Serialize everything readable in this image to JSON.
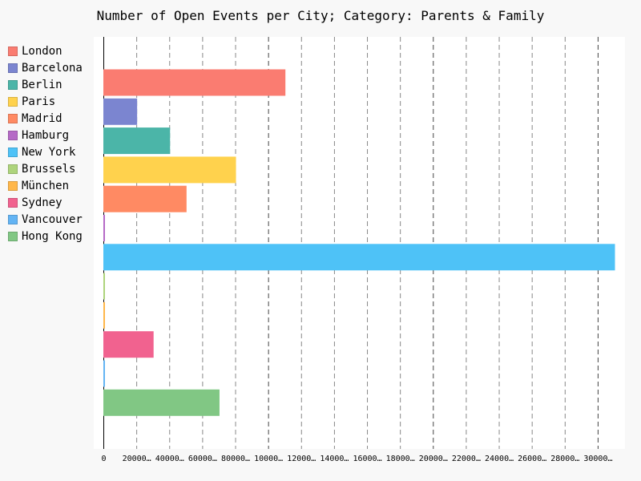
{
  "chart_data": {
    "type": "bar",
    "orientation": "horizontal",
    "title": "Number of Open Events per City; Category: Parents & Family",
    "categories": [
      "London",
      "Barcelona",
      "Berlin",
      "Paris",
      "Madrid",
      "Hamburg",
      "New York",
      "Brussels",
      "München",
      "Sydney",
      "Vancouver",
      "Hong Kong"
    ],
    "values": [
      110000,
      20000,
      40000,
      80000,
      50000,
      150,
      310000,
      150,
      150,
      30000,
      150,
      70000
    ],
    "colors": [
      "#fa7c71",
      "#7b85d0",
      "#4bb5a8",
      "#ffd24d",
      "#ff8a63",
      "#b56ac6",
      "#4ec2f7",
      "#aed47c",
      "#ffb74a",
      "#f1628f",
      "#63b4f4",
      "#81c784"
    ],
    "x_ticks": [
      "0",
      "20000…",
      "40000…",
      "60000…",
      "80000…",
      "10000…",
      "12000…",
      "14000…",
      "16000…",
      "18000…",
      "20000…",
      "22000…",
      "24000…",
      "26000…",
      "28000…",
      "30000…"
    ],
    "x_tick_values": [
      0,
      20000,
      40000,
      60000,
      80000,
      100000,
      120000,
      140000,
      160000,
      180000,
      200000,
      220000,
      240000,
      260000,
      280000,
      300000
    ],
    "xlim": [
      0,
      310000
    ],
    "grid": "vertical dashed",
    "legend": "left"
  }
}
